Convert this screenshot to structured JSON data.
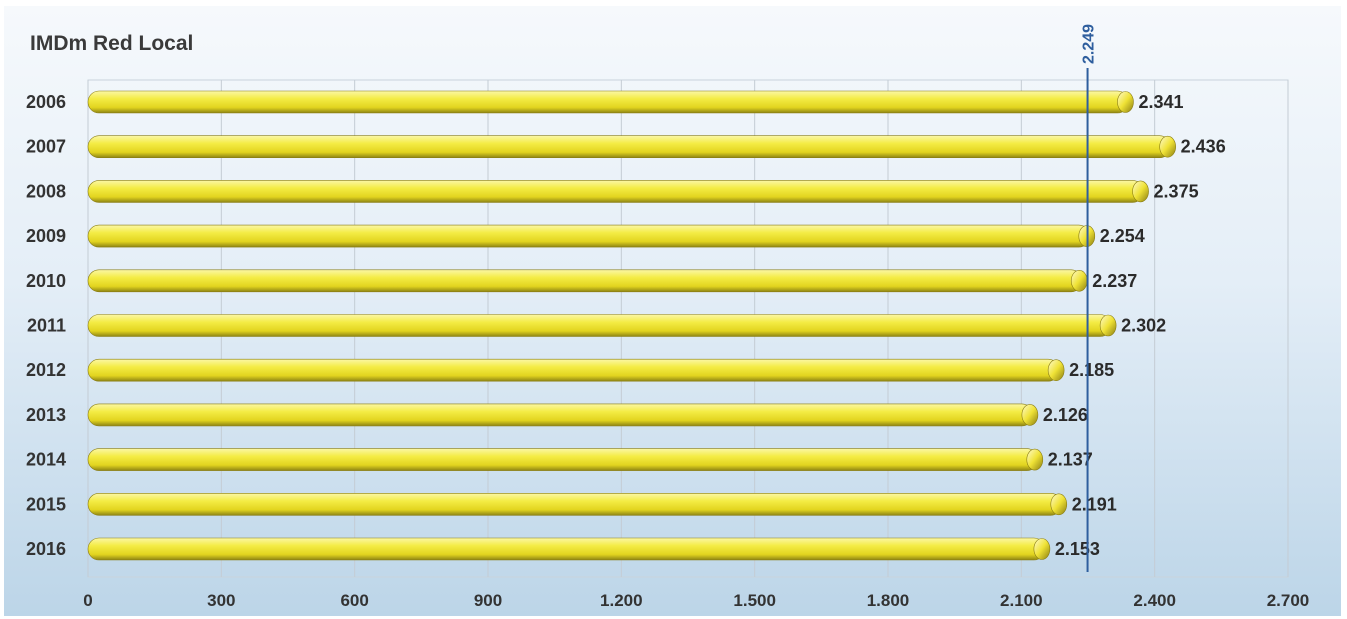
{
  "chart_data": {
    "type": "bar",
    "orientation": "horizontal",
    "title": "IMDm Red Local",
    "xlabel": "",
    "ylabel": "",
    "categories": [
      "2006",
      "2007",
      "2008",
      "2009",
      "2010",
      "2011",
      "2012",
      "2013",
      "2014",
      "2015",
      "2016"
    ],
    "values": [
      2341,
      2436,
      2375,
      2254,
      2237,
      2302,
      2185,
      2126,
      2137,
      2191,
      2153
    ],
    "value_labels": [
      "2.341",
      "2.436",
      "2.375",
      "2.254",
      "2.237",
      "2.302",
      "2.185",
      "2.126",
      "2.137",
      "2.191",
      "2.153"
    ],
    "xlim": [
      0,
      2700
    ],
    "x_ticks": [
      0,
      300,
      600,
      900,
      1200,
      1500,
      1800,
      2100,
      2400,
      2700
    ],
    "x_tick_labels": [
      "0",
      "300",
      "600",
      "900",
      "1.200",
      "1.500",
      "1.800",
      "2.100",
      "2.400",
      "2.700"
    ],
    "reference_line": {
      "value": 2249,
      "label": "2.249",
      "color": "#2e5e9e"
    },
    "grid": "vertical",
    "legend": "none",
    "bar_color": "#f2e93a",
    "bar_edge_color": "#8a7d12",
    "label_color": "#2b2b2b"
  }
}
